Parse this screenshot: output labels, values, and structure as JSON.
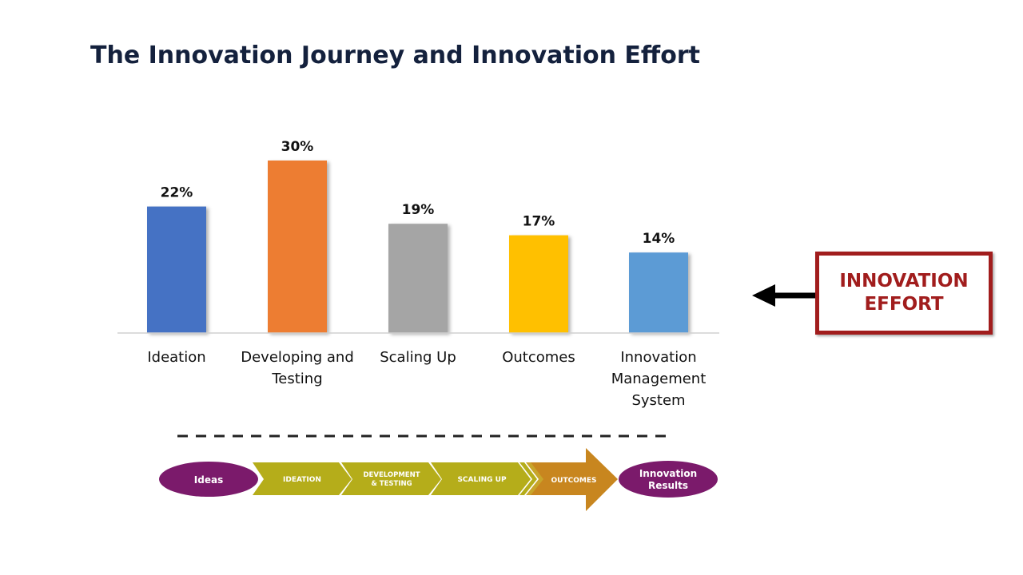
{
  "slide": {
    "title": "The Innovation Journey and Innovation Effort"
  },
  "chart_data": {
    "type": "bar",
    "categories": [
      "Ideation",
      "Developing and Testing",
      "Scaling Up",
      "Outcomes",
      "Innovation Management System"
    ],
    "category_lines": [
      [
        "Ideation"
      ],
      [
        "Developing and",
        "Testing"
      ],
      [
        "Scaling Up"
      ],
      [
        "Outcomes"
      ],
      [
        "Innovation",
        "Management",
        "System"
      ]
    ],
    "values": [
      22,
      30,
      19,
      17,
      14
    ],
    "data_labels": [
      "22%",
      "30%",
      "19%",
      "17%",
      "14%"
    ],
    "colors": [
      "#4472c4",
      "#ed7d31",
      "#a5a5a5",
      "#ffc000",
      "#5b9bd5"
    ],
    "ylim": [
      0,
      30
    ],
    "grid": false,
    "legend": "none"
  },
  "callout": {
    "line1": "INNOVATION",
    "line2": "EFFORT",
    "color": "#a11d1d"
  },
  "flow": {
    "start": "Ideas",
    "end_line1": "Innovation",
    "end_line2": "Results",
    "stage_ideation": "IDEATION",
    "stage_dev_line1": "DEVELOPMENT",
    "stage_dev_line2": "& TESTING",
    "stage_scaling": "SCALING UP",
    "stage_outcomes": "OUTCOMES",
    "oval_color": "#7b1a6b",
    "chevron_color": "#b5ad1a",
    "arrow_color": "#c8861f"
  }
}
